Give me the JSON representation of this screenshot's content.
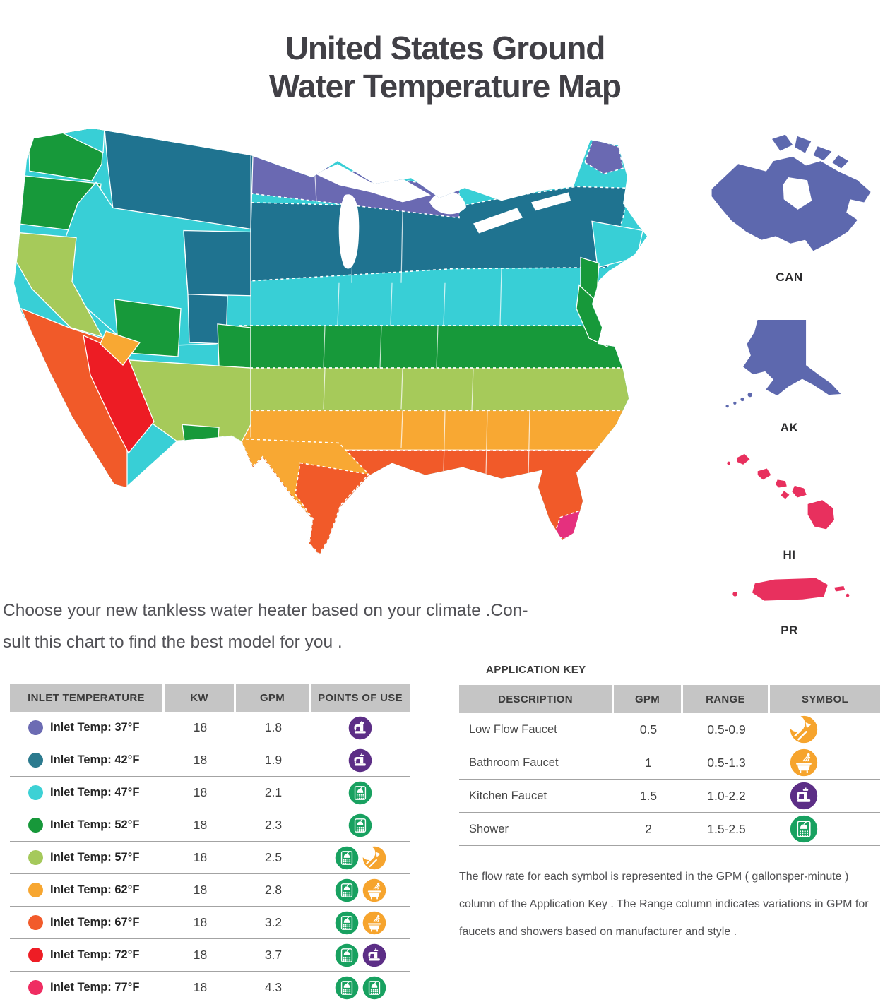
{
  "title": {
    "line1": "United States Ground",
    "line2": "Water Temperature Map"
  },
  "intro": {
    "line1": "Choose your new tankless water heater based on your climate .Con-",
    "line2": "sult this chart to find the best model for you ."
  },
  "map": {
    "zones": [
      {
        "zone": "z37",
        "temp": "37°F",
        "color": "#6a69b2"
      },
      {
        "zone": "z42",
        "temp": "42°F",
        "color": "#1f7390"
      },
      {
        "zone": "z47",
        "temp": "47°F",
        "color": "#38cfd6"
      },
      {
        "zone": "z52",
        "temp": "52°F",
        "color": "#17993a"
      },
      {
        "zone": "z57",
        "temp": "57°F",
        "color": "#a6ca5a"
      },
      {
        "zone": "z62",
        "temp": "62°F",
        "color": "#f8a833"
      },
      {
        "zone": "z67",
        "temp": "67°F",
        "color": "#f15a29"
      },
      {
        "zone": "z72",
        "temp": "72°F",
        "color": "#ed1c24"
      },
      {
        "zone": "z77",
        "temp": "77°F",
        "color": "#e5307e"
      }
    ],
    "zone_colors": {
      "z37": "#6a69b2",
      "z42": "#1f7390",
      "z47": "#38cfd6",
      "z52": "#17993a",
      "z57": "#a6ca5a",
      "z62": "#f8a833",
      "z67": "#f15a29",
      "z72": "#ed1c24",
      "z77": "#e5307e",
      "canada": "#5d68ae",
      "alaska": "#5d68ae",
      "hawaii": "#e8305e",
      "puerto_rico": "#e8305e"
    },
    "regions": [
      {
        "id": "canada",
        "label": "CAN"
      },
      {
        "id": "alaska",
        "label": "AK"
      },
      {
        "id": "hawaii",
        "label": "HI"
      },
      {
        "id": "puerto_rico",
        "label": "PR"
      }
    ]
  },
  "left_table": {
    "headers": [
      "INLET TEMPERATURE",
      "KW",
      "GPM",
      "POINTS OF USE"
    ],
    "rows": [
      {
        "label": "Inlet Temp: 37°F",
        "dot_color": "#6c6bb3",
        "kw": "18",
        "gpm": "1.8",
        "icons": [
          "kitchen-faucet"
        ]
      },
      {
        "label": "Inlet Temp: 42°F",
        "dot_color": "#2b7a8e",
        "kw": "18",
        "gpm": "1.9",
        "icons": [
          "kitchen-faucet"
        ]
      },
      {
        "label": "Inlet Temp: 47°F",
        "dot_color": "#3dd1d5",
        "kw": "18",
        "gpm": "2.1",
        "icons": [
          "shower"
        ]
      },
      {
        "label": "Inlet Temp: 52°F",
        "dot_color": "#17983a",
        "kw": "18",
        "gpm": "2.3",
        "icons": [
          "shower"
        ]
      },
      {
        "label": "Inlet Temp: 57°F",
        "dot_color": "#a5c95b",
        "kw": "18",
        "gpm": "2.5",
        "icons": [
          "shower",
          "low-flow-faucet"
        ]
      },
      {
        "label": "Inlet Temp: 62°F",
        "dot_color": "#f7a630",
        "kw": "18",
        "gpm": "2.8",
        "icons": [
          "shower",
          "bathroom-faucet"
        ]
      },
      {
        "label": "Inlet Temp: 67°F",
        "dot_color": "#f25b2b",
        "kw": "18",
        "gpm": "3.2",
        "icons": [
          "shower",
          "bathroom-faucet"
        ]
      },
      {
        "label": "Inlet Temp: 72°F",
        "dot_color": "#ee1d25",
        "kw": "18",
        "gpm": "3.7",
        "icons": [
          "shower",
          "kitchen-faucet"
        ]
      },
      {
        "label": "Inlet Temp: 77°F",
        "dot_color": "#ef2d62",
        "kw": "18",
        "gpm": "4.3",
        "icons": [
          "shower",
          "shower"
        ]
      }
    ]
  },
  "app_key": {
    "title": "APPLICATION KEY",
    "headers": [
      "DESCRIPTION",
      "GPM",
      "RANGE",
      "SYMBOL"
    ],
    "rows": [
      {
        "description": "Low Flow Faucet",
        "gpm": "0.5",
        "range": "0.5-0.9",
        "icons": [
          "low-flow-faucet"
        ]
      },
      {
        "description": "Bathroom Faucet",
        "gpm": "1",
        "range": "0.5-1.3",
        "icons": [
          "bathroom-faucet"
        ]
      },
      {
        "description": "Kitchen Faucet",
        "gpm": "1.5",
        "range": "1.0-2.2",
        "icons": [
          "kitchen-faucet"
        ]
      },
      {
        "description": "Shower",
        "gpm": "2",
        "range": "1.5-2.5",
        "icons": [
          "shower"
        ]
      }
    ]
  },
  "icon_colors": {
    "shower": "#18a160",
    "kitchen_faucet": "#5c2e86",
    "bathroom_faucet": "#f6a42d",
    "low_flow_faucet": "#f6a42d"
  },
  "footnote": "The flow rate for each symbol is represented in the GPM ( gallonsper-minute ) column of the Application Key . The Range column indicates variations in GPM for faucets and showers based on manufacturer and style ."
}
